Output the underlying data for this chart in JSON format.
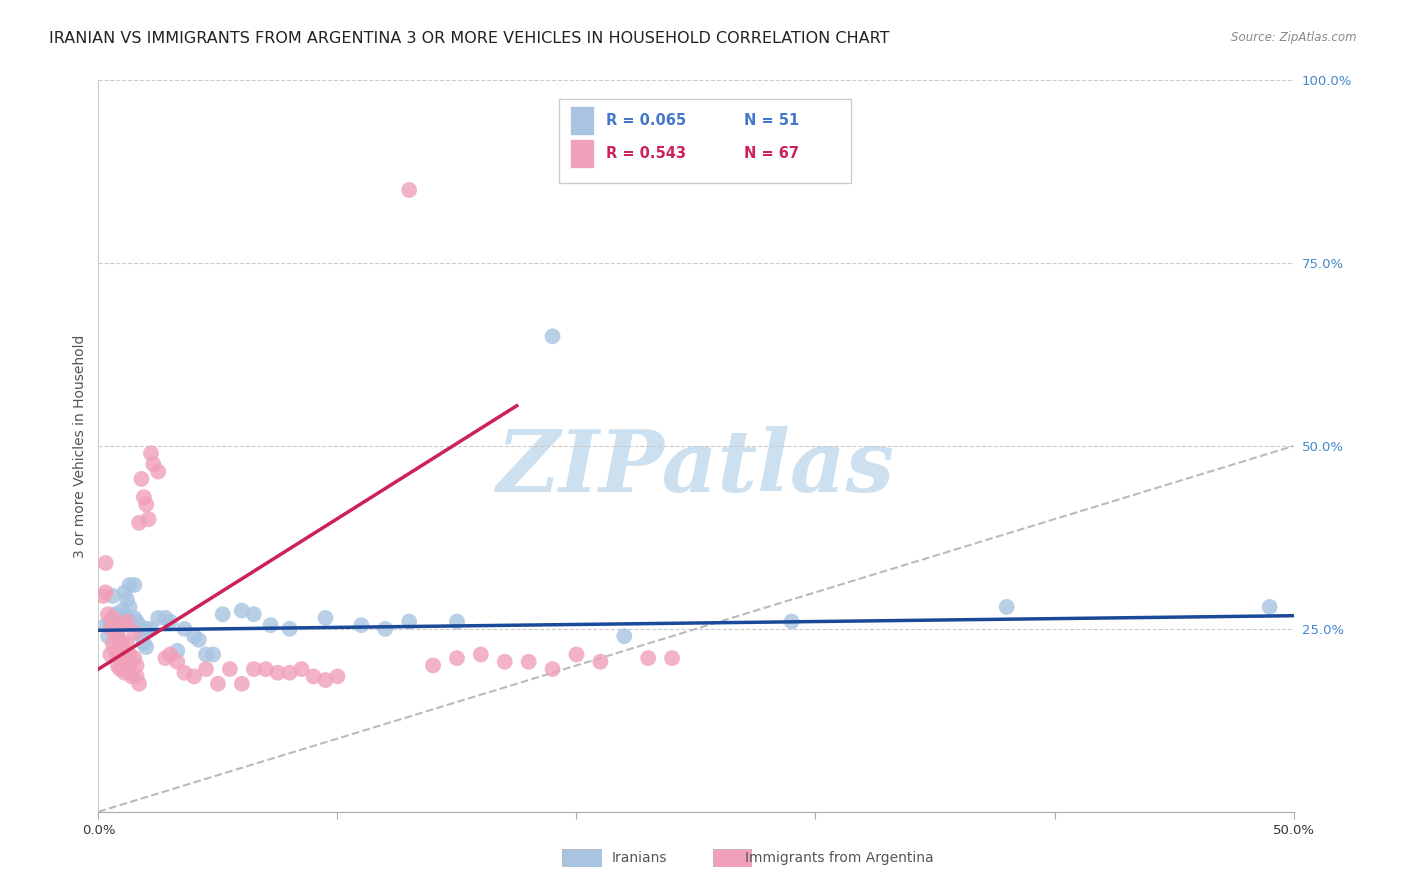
{
  "title": "IRANIAN VS IMMIGRANTS FROM ARGENTINA 3 OR MORE VEHICLES IN HOUSEHOLD CORRELATION CHART",
  "source": "Source: ZipAtlas.com",
  "ylabel": "3 or more Vehicles in Household",
  "xlim": [
    0.0,
    0.5
  ],
  "ylim": [
    0.0,
    1.0
  ],
  "legend_blue_r": "R = 0.065",
  "legend_blue_n": "N = 51",
  "legend_pink_r": "R = 0.543",
  "legend_pink_n": "N = 67",
  "blue_color": "#a8c4e0",
  "pink_color": "#f0a0b8",
  "blue_line_color": "#1a4a99",
  "pink_line_color": "#cc2255",
  "legend_blue_text_r": "#4477cc",
  "legend_blue_text_n": "#4477cc",
  "legend_pink_text_r": "#cc2255",
  "legend_pink_text_n": "#cc2255",
  "blue_scatter": [
    [
      0.003,
      0.255
    ],
    [
      0.004,
      0.24
    ],
    [
      0.005,
      0.26
    ],
    [
      0.006,
      0.295
    ],
    [
      0.007,
      0.27
    ],
    [
      0.007,
      0.255
    ],
    [
      0.008,
      0.255
    ],
    [
      0.008,
      0.24
    ],
    [
      0.009,
      0.26
    ],
    [
      0.01,
      0.255
    ],
    [
      0.01,
      0.275
    ],
    [
      0.011,
      0.3
    ],
    [
      0.011,
      0.27
    ],
    [
      0.012,
      0.29
    ],
    [
      0.012,
      0.265
    ],
    [
      0.013,
      0.31
    ],
    [
      0.013,
      0.28
    ],
    [
      0.014,
      0.26
    ],
    [
      0.015,
      0.31
    ],
    [
      0.015,
      0.265
    ],
    [
      0.016,
      0.26
    ],
    [
      0.017,
      0.255
    ],
    [
      0.018,
      0.24
    ],
    [
      0.019,
      0.23
    ],
    [
      0.02,
      0.25
    ],
    [
      0.02,
      0.225
    ],
    [
      0.022,
      0.25
    ],
    [
      0.025,
      0.265
    ],
    [
      0.028,
      0.265
    ],
    [
      0.03,
      0.26
    ],
    [
      0.033,
      0.22
    ],
    [
      0.036,
      0.25
    ],
    [
      0.04,
      0.24
    ],
    [
      0.042,
      0.235
    ],
    [
      0.045,
      0.215
    ],
    [
      0.048,
      0.215
    ],
    [
      0.052,
      0.27
    ],
    [
      0.06,
      0.275
    ],
    [
      0.065,
      0.27
    ],
    [
      0.072,
      0.255
    ],
    [
      0.08,
      0.25
    ],
    [
      0.095,
      0.265
    ],
    [
      0.11,
      0.255
    ],
    [
      0.12,
      0.25
    ],
    [
      0.13,
      0.26
    ],
    [
      0.15,
      0.26
    ],
    [
      0.19,
      0.65
    ],
    [
      0.22,
      0.24
    ],
    [
      0.29,
      0.26
    ],
    [
      0.38,
      0.28
    ],
    [
      0.49,
      0.28
    ]
  ],
  "pink_scatter": [
    [
      0.002,
      0.295
    ],
    [
      0.003,
      0.34
    ],
    [
      0.003,
      0.3
    ],
    [
      0.004,
      0.27
    ],
    [
      0.005,
      0.25
    ],
    [
      0.005,
      0.215
    ],
    [
      0.006,
      0.265
    ],
    [
      0.006,
      0.23
    ],
    [
      0.007,
      0.255
    ],
    [
      0.007,
      0.22
    ],
    [
      0.008,
      0.24
    ],
    [
      0.008,
      0.215
    ],
    [
      0.008,
      0.2
    ],
    [
      0.009,
      0.235
    ],
    [
      0.009,
      0.21
    ],
    [
      0.009,
      0.195
    ],
    [
      0.01,
      0.255
    ],
    [
      0.01,
      0.23
    ],
    [
      0.01,
      0.21
    ],
    [
      0.011,
      0.2
    ],
    [
      0.011,
      0.19
    ],
    [
      0.012,
      0.26
    ],
    [
      0.012,
      0.23
    ],
    [
      0.013,
      0.215
    ],
    [
      0.013,
      0.2
    ],
    [
      0.014,
      0.185
    ],
    [
      0.015,
      0.245
    ],
    [
      0.015,
      0.21
    ],
    [
      0.016,
      0.2
    ],
    [
      0.016,
      0.185
    ],
    [
      0.017,
      0.395
    ],
    [
      0.017,
      0.175
    ],
    [
      0.018,
      0.455
    ],
    [
      0.019,
      0.43
    ],
    [
      0.02,
      0.42
    ],
    [
      0.021,
      0.4
    ],
    [
      0.022,
      0.49
    ],
    [
      0.023,
      0.475
    ],
    [
      0.025,
      0.465
    ],
    [
      0.028,
      0.21
    ],
    [
      0.03,
      0.215
    ],
    [
      0.033,
      0.205
    ],
    [
      0.036,
      0.19
    ],
    [
      0.04,
      0.185
    ],
    [
      0.045,
      0.195
    ],
    [
      0.05,
      0.175
    ],
    [
      0.055,
      0.195
    ],
    [
      0.06,
      0.175
    ],
    [
      0.065,
      0.195
    ],
    [
      0.07,
      0.195
    ],
    [
      0.075,
      0.19
    ],
    [
      0.08,
      0.19
    ],
    [
      0.085,
      0.195
    ],
    [
      0.09,
      0.185
    ],
    [
      0.095,
      0.18
    ],
    [
      0.1,
      0.185
    ],
    [
      0.13,
      0.85
    ],
    [
      0.14,
      0.2
    ],
    [
      0.15,
      0.21
    ],
    [
      0.16,
      0.215
    ],
    [
      0.17,
      0.205
    ],
    [
      0.18,
      0.205
    ],
    [
      0.19,
      0.195
    ],
    [
      0.2,
      0.215
    ],
    [
      0.21,
      0.205
    ],
    [
      0.23,
      0.21
    ],
    [
      0.24,
      0.21
    ]
  ],
  "blue_line_x": [
    0.0,
    0.5
  ],
  "blue_line_y": [
    0.248,
    0.268
  ],
  "pink_line_x": [
    0.0,
    0.175
  ],
  "pink_line_y": [
    0.195,
    0.555
  ],
  "diag_line_x": [
    0.0,
    0.5
  ],
  "diag_line_y": [
    0.0,
    0.5
  ],
  "background_color": "#ffffff",
  "grid_color": "#cccccc",
  "watermark": "ZIPatlas",
  "watermark_color": "#cce0f0",
  "title_fontsize": 11.5,
  "axis_label_fontsize": 10,
  "tick_fontsize": 9.5
}
